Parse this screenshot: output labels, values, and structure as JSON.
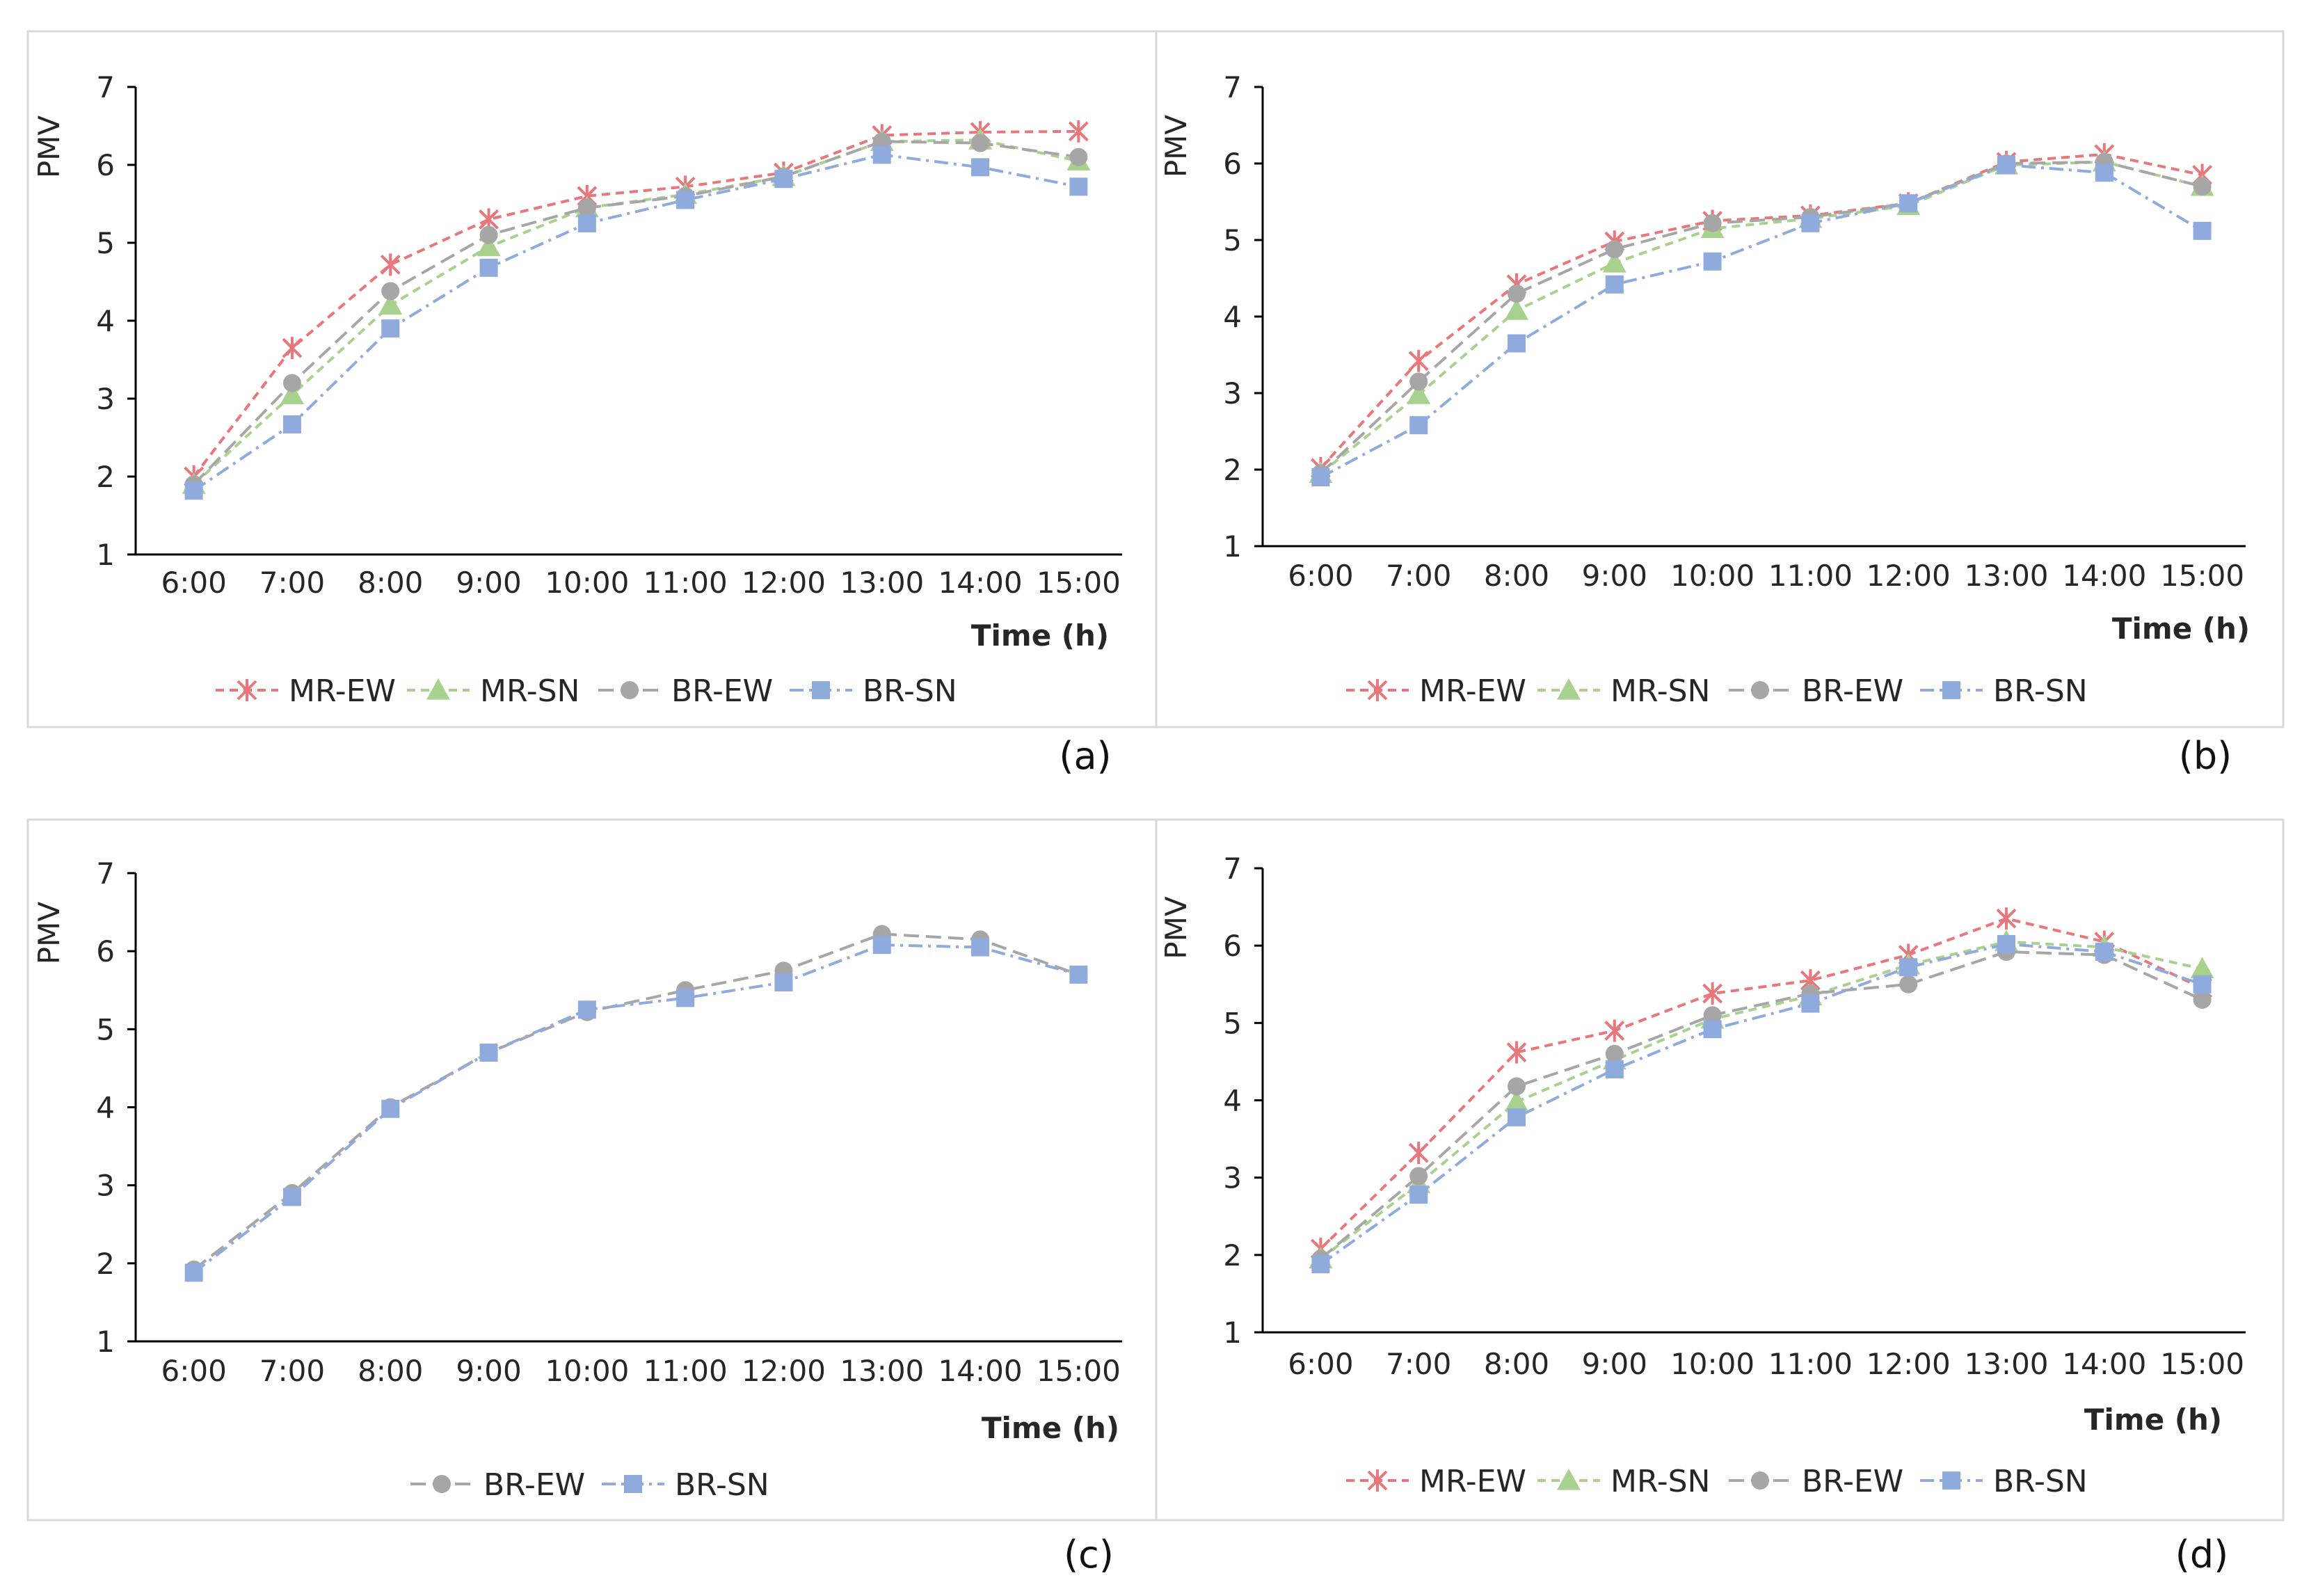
{
  "colors": {
    "MR-EW": "#e8767a",
    "MR-SN": "#a9d18e",
    "BR-EW": "#a6a6a6",
    "BR-SN": "#8faadc",
    "axis": "#000000",
    "frame": "#d9d9d9"
  },
  "chart_data": [
    {
      "panel": "(a)",
      "type": "line",
      "categories": [
        "6:00",
        "7:00",
        "8:00",
        "9:00",
        "10:00",
        "11:00",
        "12:00",
        "13:00",
        "14:00",
        "15:00"
      ],
      "ylabel": "PMV",
      "xlabel": "Time (h)",
      "ylim": [
        1,
        7
      ],
      "yticks": [
        1,
        2,
        3,
        4,
        5,
        6,
        7
      ],
      "series": [
        {
          "name": "MR-EW",
          "marker": "star",
          "dash": "dashed",
          "values": [
            2.0,
            3.65,
            4.72,
            5.3,
            5.6,
            5.72,
            5.9,
            6.38,
            6.42,
            6.43
          ]
        },
        {
          "name": "MR-SN",
          "marker": "triangle",
          "dash": "dashed",
          "values": [
            1.9,
            3.05,
            4.2,
            4.95,
            5.45,
            5.62,
            5.85,
            6.3,
            6.32,
            6.05
          ]
        },
        {
          "name": "BR-EW",
          "marker": "circle",
          "dash": "longdash",
          "values": [
            1.9,
            3.2,
            4.38,
            5.1,
            5.45,
            5.6,
            5.85,
            6.3,
            6.28,
            6.1
          ]
        },
        {
          "name": "BR-SN",
          "marker": "square",
          "dash": "dashdot",
          "values": [
            1.82,
            2.67,
            3.9,
            4.68,
            5.25,
            5.55,
            5.82,
            6.13,
            5.97,
            5.72
          ]
        }
      ]
    },
    {
      "panel": "(b)",
      "type": "line",
      "categories": [
        "6:00",
        "7:00",
        "8:00",
        "9:00",
        "10:00",
        "11:00",
        "12:00",
        "13:00",
        "14:00",
        "15:00"
      ],
      "ylabel": "PMV",
      "xlabel": "Time (h)",
      "ylim": [
        1,
        7
      ],
      "yticks": [
        1,
        2,
        3,
        4,
        5,
        6,
        7
      ],
      "series": [
        {
          "name": "MR-EW",
          "marker": "star",
          "dash": "dashed",
          "values": [
            2.02,
            3.42,
            4.42,
            4.98,
            5.25,
            5.32,
            5.48,
            6.02,
            6.12,
            5.85
          ]
        },
        {
          "name": "MR-SN",
          "marker": "triangle",
          "dash": "dashed",
          "values": [
            1.95,
            2.98,
            4.08,
            4.7,
            5.15,
            5.28,
            5.45,
            5.98,
            6.02,
            5.7
          ]
        },
        {
          "name": "BR-EW",
          "marker": "circle",
          "dash": "longdash",
          "values": [
            1.95,
            3.15,
            4.3,
            4.88,
            5.22,
            5.3,
            5.48,
            6.0,
            6.02,
            5.7
          ]
        },
        {
          "name": "BR-SN",
          "marker": "square",
          "dash": "dashdot",
          "values": [
            1.9,
            2.58,
            3.65,
            4.42,
            4.72,
            5.22,
            5.48,
            5.98,
            5.88,
            5.12
          ]
        }
      ]
    },
    {
      "panel": "(c)",
      "type": "line",
      "categories": [
        "6:00",
        "7:00",
        "8:00",
        "9:00",
        "10:00",
        "11:00",
        "12:00",
        "13:00",
        "14:00",
        "15:00"
      ],
      "ylabel": "PMV",
      "xlabel": "Time (h)",
      "ylim": [
        1,
        7
      ],
      "yticks": [
        1,
        2,
        3,
        4,
        5,
        6,
        7
      ],
      "series": [
        {
          "name": "BR-EW",
          "marker": "circle",
          "dash": "longdash",
          "values": [
            1.92,
            2.9,
            4.0,
            4.7,
            5.22,
            5.5,
            5.75,
            6.22,
            6.15,
            5.7
          ]
        },
        {
          "name": "BR-SN",
          "marker": "square",
          "dash": "dashdot",
          "values": [
            1.88,
            2.85,
            3.98,
            4.7,
            5.25,
            5.4,
            5.6,
            6.08,
            6.05,
            5.7
          ]
        }
      ]
    },
    {
      "panel": "(d)",
      "type": "line",
      "categories": [
        "6:00",
        "7:00",
        "8:00",
        "9:00",
        "10:00",
        "11:00",
        "12:00",
        "13:00",
        "14:00",
        "15:00"
      ],
      "ylabel": "PMV",
      "xlabel": "Time (h)",
      "ylim": [
        1,
        7
      ],
      "yticks": [
        1,
        2,
        3,
        4,
        5,
        6,
        7
      ],
      "series": [
        {
          "name": "MR-EW",
          "marker": "star",
          "dash": "dashed",
          "values": [
            2.08,
            3.32,
            4.62,
            4.9,
            5.38,
            5.55,
            5.88,
            6.35,
            6.05,
            5.45
          ]
        },
        {
          "name": "MR-SN",
          "marker": "triangle",
          "dash": "dashed",
          "values": [
            1.95,
            2.92,
            3.98,
            4.52,
            5.05,
            5.35,
            5.75,
            6.05,
            5.98,
            5.7
          ]
        },
        {
          "name": "BR-EW",
          "marker": "circle",
          "dash": "longdash",
          "values": [
            1.95,
            3.02,
            4.18,
            4.6,
            5.1,
            5.38,
            5.5,
            5.92,
            5.88,
            5.3
          ]
        },
        {
          "name": "BR-SN",
          "marker": "square",
          "dash": "dashdot",
          "values": [
            1.88,
            2.78,
            3.78,
            4.4,
            4.92,
            5.25,
            5.72,
            6.02,
            5.92,
            5.5
          ]
        }
      ]
    }
  ]
}
